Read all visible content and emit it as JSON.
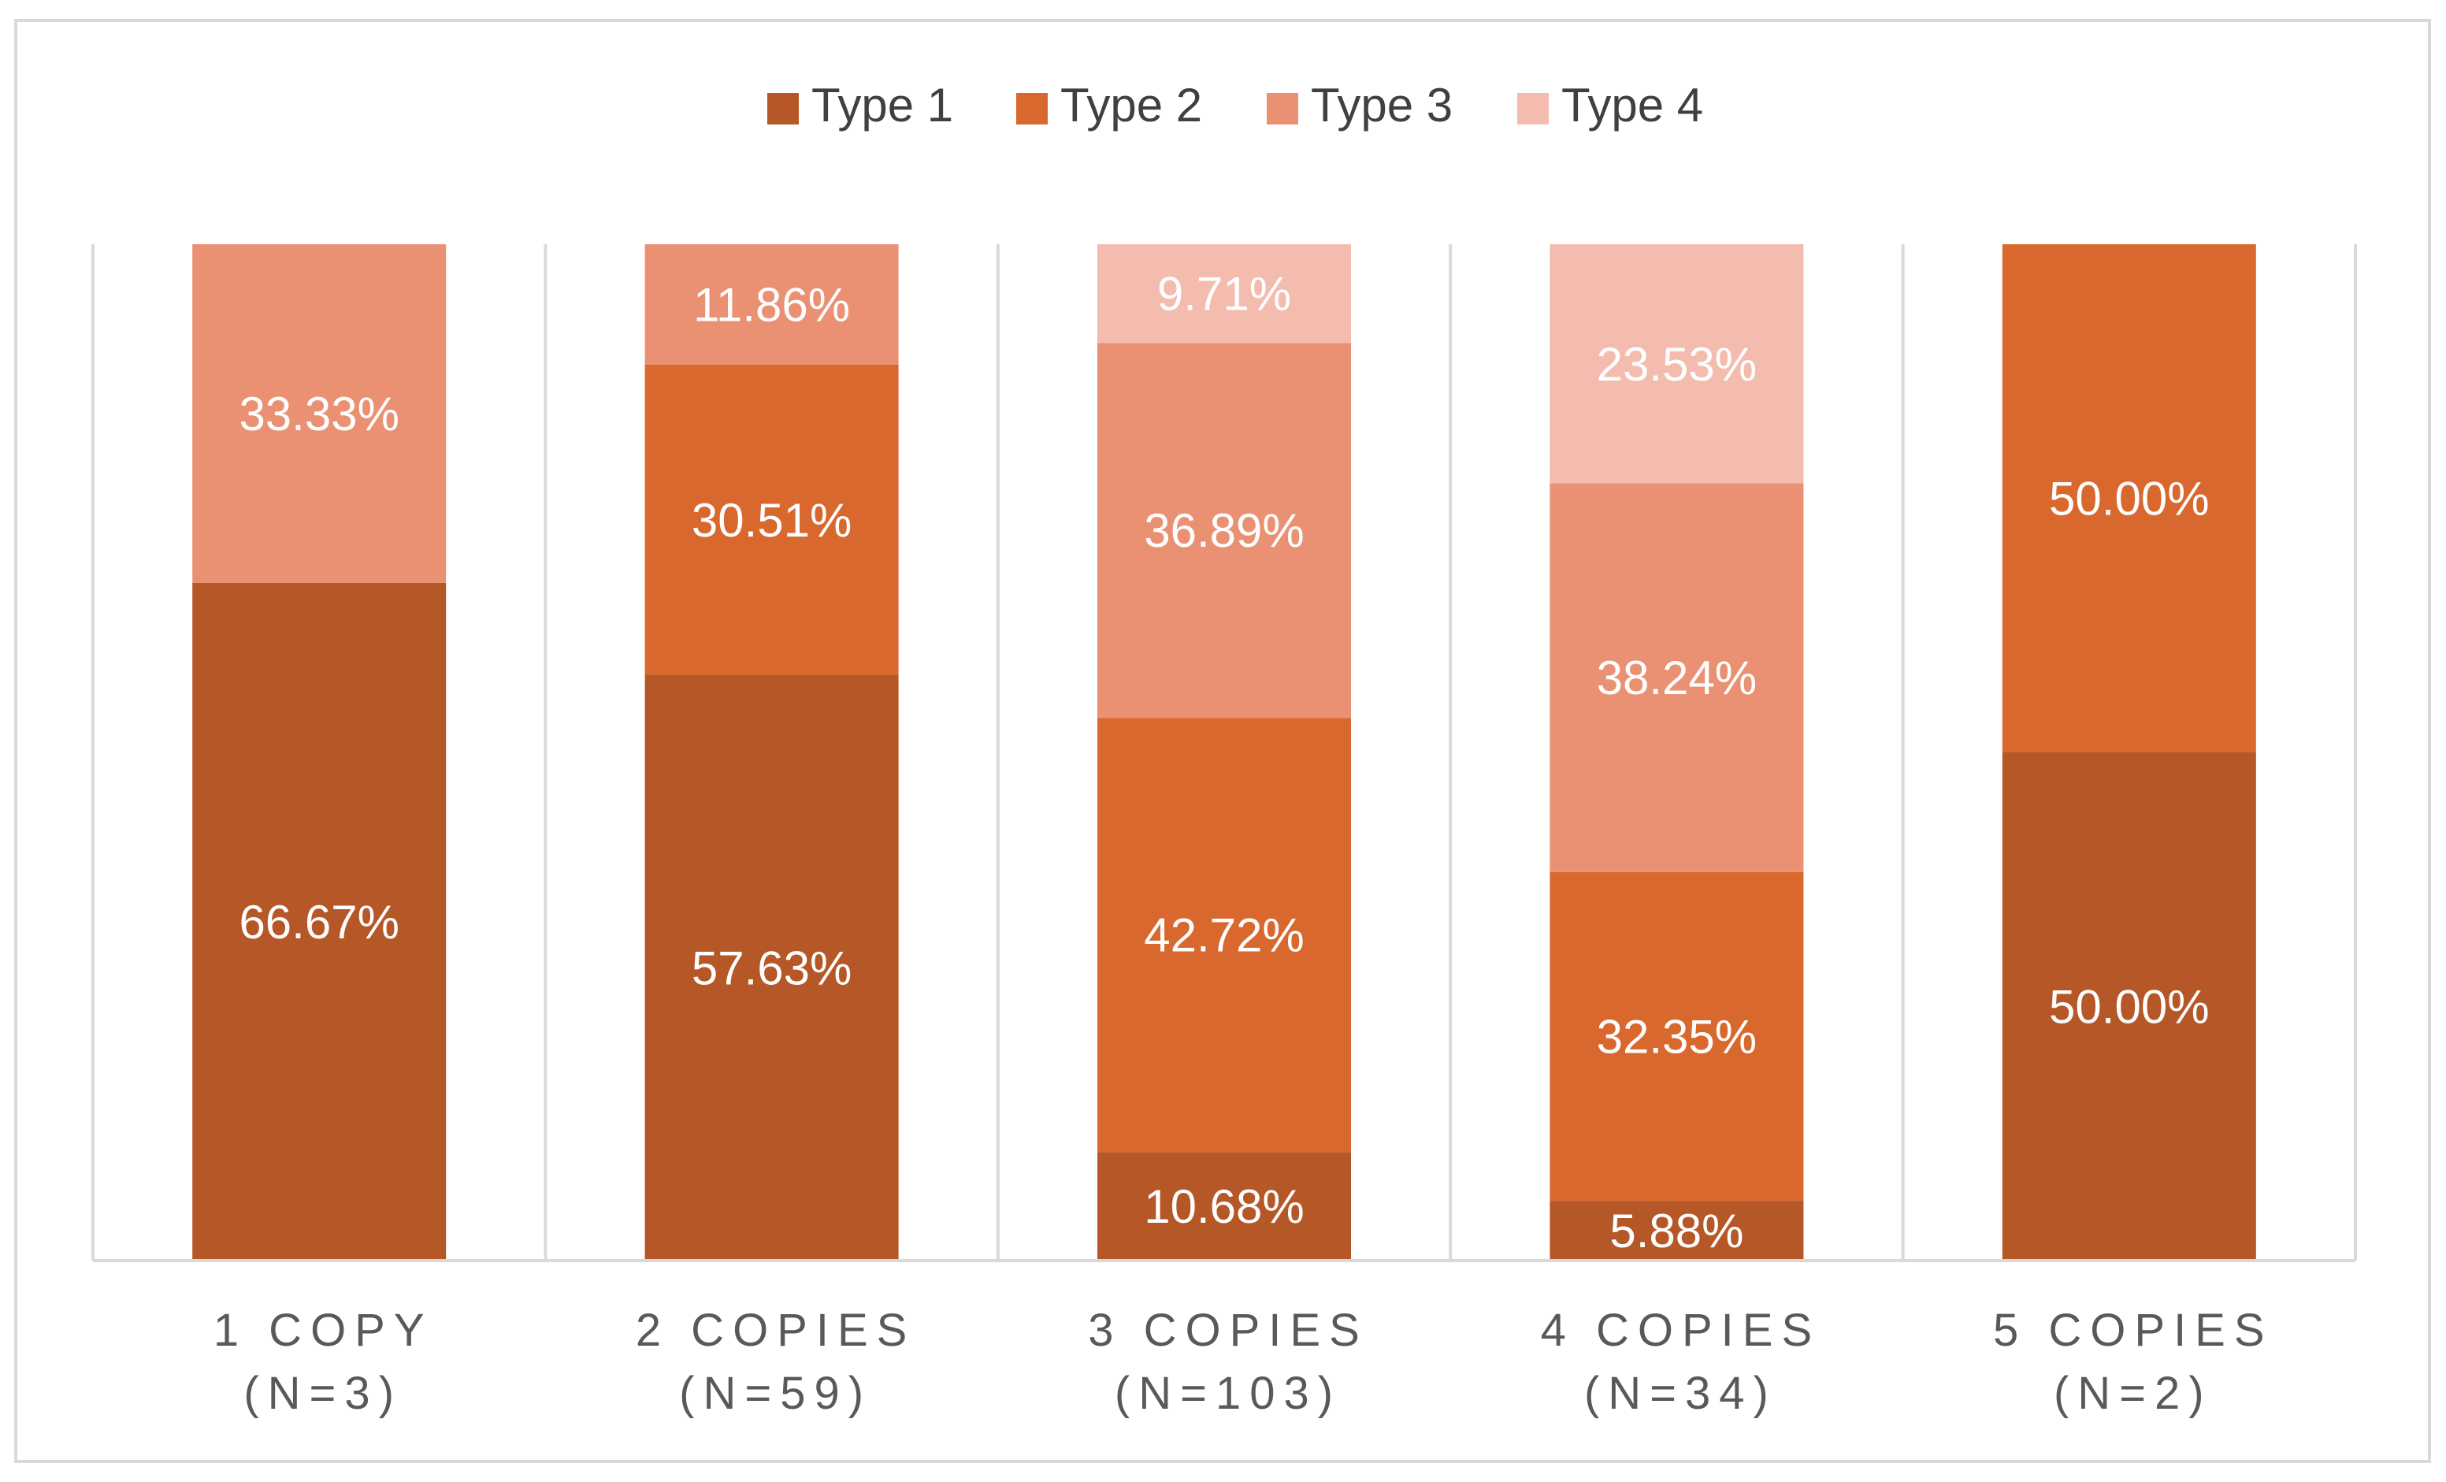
{
  "chart_data": {
    "type": "bar",
    "stacked": true,
    "percent": true,
    "categories": [
      [
        "1 COPY",
        "(N=3)"
      ],
      [
        "2 COPIES",
        "(N=59)"
      ],
      [
        "3 COPIES",
        "(N=103)"
      ],
      [
        "4 COPIES",
        "(N=34)"
      ],
      [
        "5 COPIES",
        "(N=2)"
      ]
    ],
    "series": [
      {
        "name": "Type 1",
        "color": "#b55726",
        "values": [
          66.67,
          57.63,
          10.68,
          5.88,
          50.0
        ]
      },
      {
        "name": "Type 2",
        "color": "#d9682e",
        "values": [
          0,
          30.51,
          42.72,
          32.35,
          50.0
        ]
      },
      {
        "name": "Type 3",
        "color": "#ea9173",
        "values": [
          33.33,
          11.86,
          36.89,
          38.24,
          0
        ]
      },
      {
        "name": "Type 4",
        "color": "#f3bcaf",
        "values": [
          0,
          0,
          9.71,
          23.53,
          0
        ]
      }
    ],
    "ylim": [
      0,
      100
    ],
    "legend": "top",
    "grid": "vertical"
  }
}
